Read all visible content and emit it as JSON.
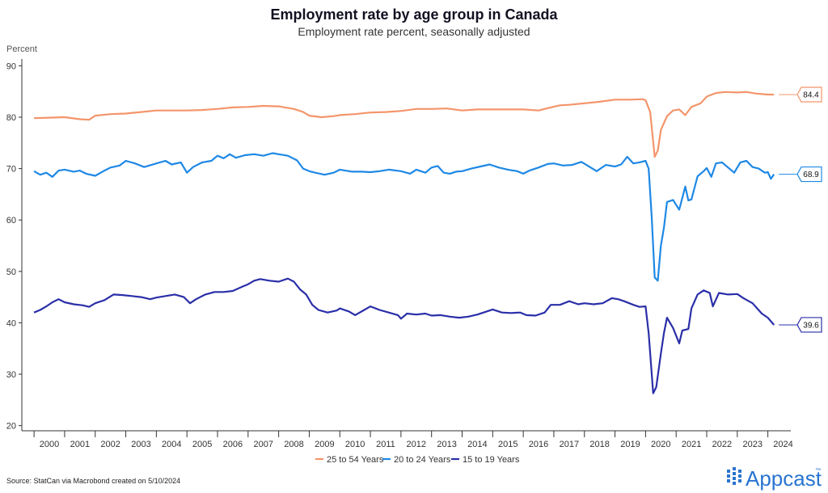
{
  "chart_data": {
    "type": "line",
    "title": "Employment rate by age group in Canada",
    "subtitle": "Employment rate percent, seasonally adjusted",
    "ylabel": "Percent",
    "xlabel": "",
    "ylim": [
      19,
      91
    ],
    "xlim": [
      1999.6,
      2024.75
    ],
    "yticks": [
      "20",
      "30",
      "40",
      "50",
      "60",
      "70",
      "80",
      "90"
    ],
    "xticks": [
      "2000",
      "2001",
      "2002",
      "2003",
      "2004",
      "2005",
      "2006",
      "2007",
      "2008",
      "2009",
      "2010",
      "2011",
      "2012",
      "2013",
      "2014",
      "2015",
      "2016",
      "2017",
      "2018",
      "2019",
      "2020",
      "2021",
      "2022",
      "2023",
      "2024"
    ],
    "grid": false,
    "legend_position": "bottom",
    "series": [
      {
        "name": "25 to 54 Years",
        "color": "#f4956b",
        "end_label": "84.4",
        "points": [
          [
            2000.0,
            79.8
          ],
          [
            2000.5,
            79.9
          ],
          [
            2001.0,
            80.0
          ],
          [
            2001.5,
            79.6
          ],
          [
            2001.8,
            79.5
          ],
          [
            2002.0,
            80.3
          ],
          [
            2002.5,
            80.6
          ],
          [
            2003.0,
            80.7
          ],
          [
            2003.5,
            81.0
          ],
          [
            2004.0,
            81.3
          ],
          [
            2004.5,
            81.3
          ],
          [
            2005.0,
            81.3
          ],
          [
            2005.5,
            81.4
          ],
          [
            2006.0,
            81.6
          ],
          [
            2006.5,
            81.9
          ],
          [
            2007.0,
            82.0
          ],
          [
            2007.5,
            82.2
          ],
          [
            2008.0,
            82.1
          ],
          [
            2008.5,
            81.6
          ],
          [
            2008.8,
            81.0
          ],
          [
            2009.0,
            80.3
          ],
          [
            2009.4,
            80.0
          ],
          [
            2009.8,
            80.2
          ],
          [
            2010.0,
            80.4
          ],
          [
            2010.5,
            80.6
          ],
          [
            2011.0,
            80.9
          ],
          [
            2011.5,
            81.0
          ],
          [
            2012.0,
            81.2
          ],
          [
            2012.5,
            81.6
          ],
          [
            2013.0,
            81.6
          ],
          [
            2013.5,
            81.7
          ],
          [
            2014.0,
            81.3
          ],
          [
            2014.5,
            81.5
          ],
          [
            2015.0,
            81.5
          ],
          [
            2015.5,
            81.5
          ],
          [
            2016.0,
            81.5
          ],
          [
            2016.5,
            81.3
          ],
          [
            2016.9,
            81.9
          ],
          [
            2017.2,
            82.3
          ],
          [
            2017.5,
            82.4
          ],
          [
            2018.0,
            82.7
          ],
          [
            2018.5,
            83.0
          ],
          [
            2019.0,
            83.4
          ],
          [
            2019.5,
            83.4
          ],
          [
            2019.9,
            83.5
          ],
          [
            2020.0,
            83.3
          ],
          [
            2020.15,
            81.0
          ],
          [
            2020.3,
            72.3
          ],
          [
            2020.4,
            73.5
          ],
          [
            2020.5,
            77.5
          ],
          [
            2020.7,
            80.2
          ],
          [
            2020.9,
            81.3
          ],
          [
            2021.1,
            81.5
          ],
          [
            2021.3,
            80.4
          ],
          [
            2021.5,
            82.0
          ],
          [
            2021.8,
            82.7
          ],
          [
            2022.0,
            84.0
          ],
          [
            2022.3,
            84.7
          ],
          [
            2022.6,
            84.9
          ],
          [
            2023.0,
            84.8
          ],
          [
            2023.3,
            84.9
          ],
          [
            2023.6,
            84.6
          ],
          [
            2024.0,
            84.4
          ],
          [
            2024.2,
            84.4
          ]
        ]
      },
      {
        "name": "20 to 24 Years",
        "color": "#1e88e5",
        "end_label": "68.9",
        "points": [
          [
            2000.0,
            69.5
          ],
          [
            2000.2,
            68.8
          ],
          [
            2000.4,
            69.2
          ],
          [
            2000.6,
            68.4
          ],
          [
            2000.8,
            69.6
          ],
          [
            2001.0,
            69.8
          ],
          [
            2001.3,
            69.4
          ],
          [
            2001.5,
            69.6
          ],
          [
            2001.7,
            69.0
          ],
          [
            2002.0,
            68.6
          ],
          [
            2002.3,
            69.6
          ],
          [
            2002.5,
            70.2
          ],
          [
            2002.8,
            70.6
          ],
          [
            2003.0,
            71.5
          ],
          [
            2003.3,
            71.0
          ],
          [
            2003.6,
            70.3
          ],
          [
            2004.0,
            71.0
          ],
          [
            2004.3,
            71.5
          ],
          [
            2004.5,
            70.8
          ],
          [
            2004.8,
            71.2
          ],
          [
            2005.0,
            69.2
          ],
          [
            2005.2,
            70.3
          ],
          [
            2005.5,
            71.2
          ],
          [
            2005.8,
            71.5
          ],
          [
            2006.0,
            72.5
          ],
          [
            2006.2,
            72.0
          ],
          [
            2006.4,
            72.8
          ],
          [
            2006.6,
            72.1
          ],
          [
            2006.9,
            72.6
          ],
          [
            2007.2,
            72.8
          ],
          [
            2007.5,
            72.5
          ],
          [
            2007.8,
            73.0
          ],
          [
            2008.0,
            72.8
          ],
          [
            2008.3,
            72.5
          ],
          [
            2008.6,
            71.6
          ],
          [
            2008.8,
            70.0
          ],
          [
            2009.0,
            69.5
          ],
          [
            2009.2,
            69.2
          ],
          [
            2009.5,
            68.8
          ],
          [
            2009.8,
            69.2
          ],
          [
            2010.0,
            69.8
          ],
          [
            2010.4,
            69.4
          ],
          [
            2010.7,
            69.4
          ],
          [
            2011.0,
            69.3
          ],
          [
            2011.3,
            69.5
          ],
          [
            2011.6,
            69.8
          ],
          [
            2012.0,
            69.5
          ],
          [
            2012.3,
            69.0
          ],
          [
            2012.5,
            69.8
          ],
          [
            2012.8,
            69.2
          ],
          [
            2013.0,
            70.2
          ],
          [
            2013.2,
            70.5
          ],
          [
            2013.4,
            69.2
          ],
          [
            2013.6,
            69.0
          ],
          [
            2013.8,
            69.4
          ],
          [
            2014.0,
            69.5
          ],
          [
            2014.3,
            70.0
          ],
          [
            2014.6,
            70.4
          ],
          [
            2014.9,
            70.8
          ],
          [
            2015.2,
            70.2
          ],
          [
            2015.5,
            69.8
          ],
          [
            2015.8,
            69.5
          ],
          [
            2016.0,
            69.0
          ],
          [
            2016.2,
            69.6
          ],
          [
            2016.5,
            70.2
          ],
          [
            2016.8,
            70.9
          ],
          [
            2017.0,
            71.0
          ],
          [
            2017.3,
            70.6
          ],
          [
            2017.6,
            70.7
          ],
          [
            2017.9,
            71.3
          ],
          [
            2018.1,
            70.6
          ],
          [
            2018.4,
            69.5
          ],
          [
            2018.7,
            70.7
          ],
          [
            2019.0,
            70.4
          ],
          [
            2019.2,
            70.8
          ],
          [
            2019.4,
            72.3
          ],
          [
            2019.6,
            71.0
          ],
          [
            2019.8,
            71.2
          ],
          [
            2020.0,
            71.5
          ],
          [
            2020.1,
            70.0
          ],
          [
            2020.2,
            60.5
          ],
          [
            2020.3,
            48.8
          ],
          [
            2020.4,
            48.2
          ],
          [
            2020.5,
            55.0
          ],
          [
            2020.6,
            58.5
          ],
          [
            2020.7,
            63.5
          ],
          [
            2020.9,
            63.9
          ],
          [
            2021.1,
            62.0
          ],
          [
            2021.3,
            66.5
          ],
          [
            2021.4,
            63.8
          ],
          [
            2021.5,
            64.0
          ],
          [
            2021.7,
            68.5
          ],
          [
            2021.9,
            69.5
          ],
          [
            2022.0,
            70.1
          ],
          [
            2022.15,
            68.4
          ],
          [
            2022.3,
            71.0
          ],
          [
            2022.5,
            71.2
          ],
          [
            2022.7,
            70.2
          ],
          [
            2022.9,
            69.2
          ],
          [
            2023.1,
            71.2
          ],
          [
            2023.3,
            71.5
          ],
          [
            2023.5,
            70.3
          ],
          [
            2023.7,
            70.0
          ],
          [
            2023.9,
            69.2
          ],
          [
            2024.0,
            69.3
          ],
          [
            2024.1,
            68.0
          ],
          [
            2024.2,
            68.9
          ]
        ]
      },
      {
        "name": "15 to 19 Years",
        "color": "#2a2fa8",
        "end_label": "39.6",
        "points": [
          [
            2000.0,
            42.0
          ],
          [
            2000.2,
            42.5
          ],
          [
            2000.4,
            43.2
          ],
          [
            2000.6,
            44.0
          ],
          [
            2000.8,
            44.6
          ],
          [
            2001.0,
            44.0
          ],
          [
            2001.3,
            43.6
          ],
          [
            2001.6,
            43.4
          ],
          [
            2001.8,
            43.1
          ],
          [
            2002.0,
            43.8
          ],
          [
            2002.3,
            44.4
          ],
          [
            2002.6,
            45.5
          ],
          [
            2002.9,
            45.4
          ],
          [
            2003.2,
            45.2
          ],
          [
            2003.5,
            45.0
          ],
          [
            2003.8,
            44.6
          ],
          [
            2004.0,
            44.9
          ],
          [
            2004.3,
            45.2
          ],
          [
            2004.6,
            45.5
          ],
          [
            2004.9,
            45.0
          ],
          [
            2005.1,
            43.8
          ],
          [
            2005.3,
            44.6
          ],
          [
            2005.6,
            45.5
          ],
          [
            2005.9,
            46.0
          ],
          [
            2006.2,
            46.0
          ],
          [
            2006.5,
            46.2
          ],
          [
            2006.8,
            47.0
          ],
          [
            2007.0,
            47.5
          ],
          [
            2007.2,
            48.2
          ],
          [
            2007.4,
            48.5
          ],
          [
            2007.7,
            48.2
          ],
          [
            2008.0,
            48.0
          ],
          [
            2008.3,
            48.6
          ],
          [
            2008.5,
            48.0
          ],
          [
            2008.7,
            46.5
          ],
          [
            2008.9,
            45.5
          ],
          [
            2009.1,
            43.5
          ],
          [
            2009.3,
            42.5
          ],
          [
            2009.6,
            42.0
          ],
          [
            2009.9,
            42.4
          ],
          [
            2010.0,
            42.8
          ],
          [
            2010.3,
            42.2
          ],
          [
            2010.5,
            41.5
          ],
          [
            2010.8,
            42.5
          ],
          [
            2011.0,
            43.2
          ],
          [
            2011.3,
            42.5
          ],
          [
            2011.6,
            42.0
          ],
          [
            2011.9,
            41.5
          ],
          [
            2012.0,
            40.8
          ],
          [
            2012.2,
            41.8
          ],
          [
            2012.5,
            41.6
          ],
          [
            2012.8,
            41.8
          ],
          [
            2013.0,
            41.4
          ],
          [
            2013.3,
            41.5
          ],
          [
            2013.6,
            41.2
          ],
          [
            2013.9,
            41.0
          ],
          [
            2014.2,
            41.2
          ],
          [
            2014.5,
            41.6
          ],
          [
            2014.8,
            42.2
          ],
          [
            2015.0,
            42.6
          ],
          [
            2015.3,
            42.0
          ],
          [
            2015.6,
            41.9
          ],
          [
            2015.9,
            42.0
          ],
          [
            2016.1,
            41.5
          ],
          [
            2016.4,
            41.4
          ],
          [
            2016.7,
            42.0
          ],
          [
            2016.9,
            43.5
          ],
          [
            2017.2,
            43.5
          ],
          [
            2017.5,
            44.2
          ],
          [
            2017.8,
            43.6
          ],
          [
            2018.0,
            43.8
          ],
          [
            2018.3,
            43.6
          ],
          [
            2018.6,
            43.8
          ],
          [
            2018.9,
            44.8
          ],
          [
            2019.1,
            44.6
          ],
          [
            2019.3,
            44.2
          ],
          [
            2019.6,
            43.5
          ],
          [
            2019.8,
            43.1
          ],
          [
            2020.0,
            43.2
          ],
          [
            2020.1,
            38.0
          ],
          [
            2020.25,
            26.3
          ],
          [
            2020.35,
            27.5
          ],
          [
            2020.5,
            34.0
          ],
          [
            2020.6,
            38.0
          ],
          [
            2020.7,
            41.0
          ],
          [
            2020.9,
            39.0
          ],
          [
            2021.1,
            36.0
          ],
          [
            2021.2,
            38.5
          ],
          [
            2021.4,
            38.8
          ],
          [
            2021.5,
            42.8
          ],
          [
            2021.7,
            45.5
          ],
          [
            2021.9,
            46.3
          ],
          [
            2022.1,
            45.8
          ],
          [
            2022.2,
            43.2
          ],
          [
            2022.4,
            45.8
          ],
          [
            2022.7,
            45.5
          ],
          [
            2023.0,
            45.6
          ],
          [
            2023.2,
            44.8
          ],
          [
            2023.5,
            43.8
          ],
          [
            2023.8,
            41.8
          ],
          [
            2024.0,
            41.0
          ],
          [
            2024.2,
            39.6
          ]
        ]
      }
    ]
  },
  "footer": {
    "source": "Source: StatCan via Macrobond created on 5/10/2024",
    "brand": "Appcast",
    "brand_mark": "™"
  }
}
